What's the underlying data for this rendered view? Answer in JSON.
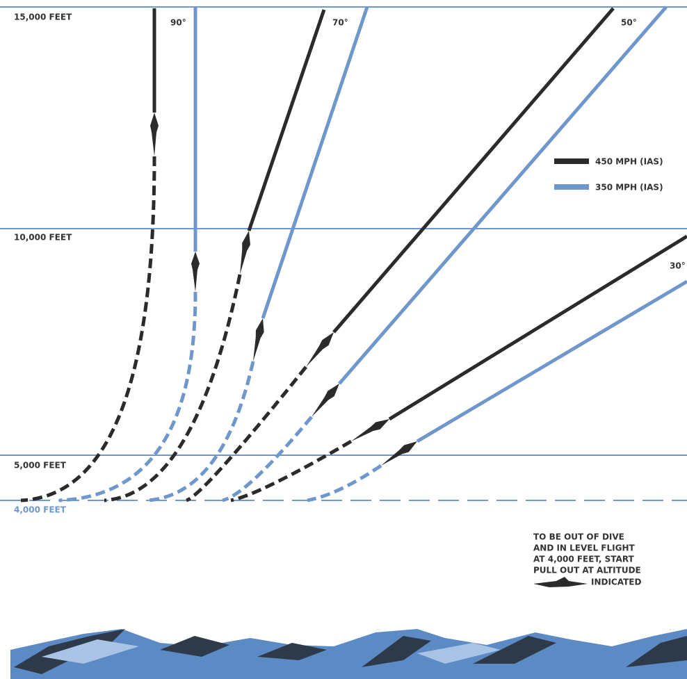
{
  "altitudes": {
    "feet_15000": "15,000 FEET",
    "feet_10000": "10,000 FEET",
    "feet_5000": "5,000 FEET",
    "feet_4000": "4,000 FEET"
  },
  "angles": [
    "90°",
    "70°",
    "50°",
    "30°"
  ],
  "legend": [
    "450 MPH (IAS)",
    "350 MPH (IAS)"
  ],
  "note": [
    "TO BE OUT OF DIVE",
    "AND IN LEVEL FLIGHT",
    "AT 4,000 FEET, START",
    "PULL OUT AT ALTITUDE",
    "INDICATED"
  ]
}
